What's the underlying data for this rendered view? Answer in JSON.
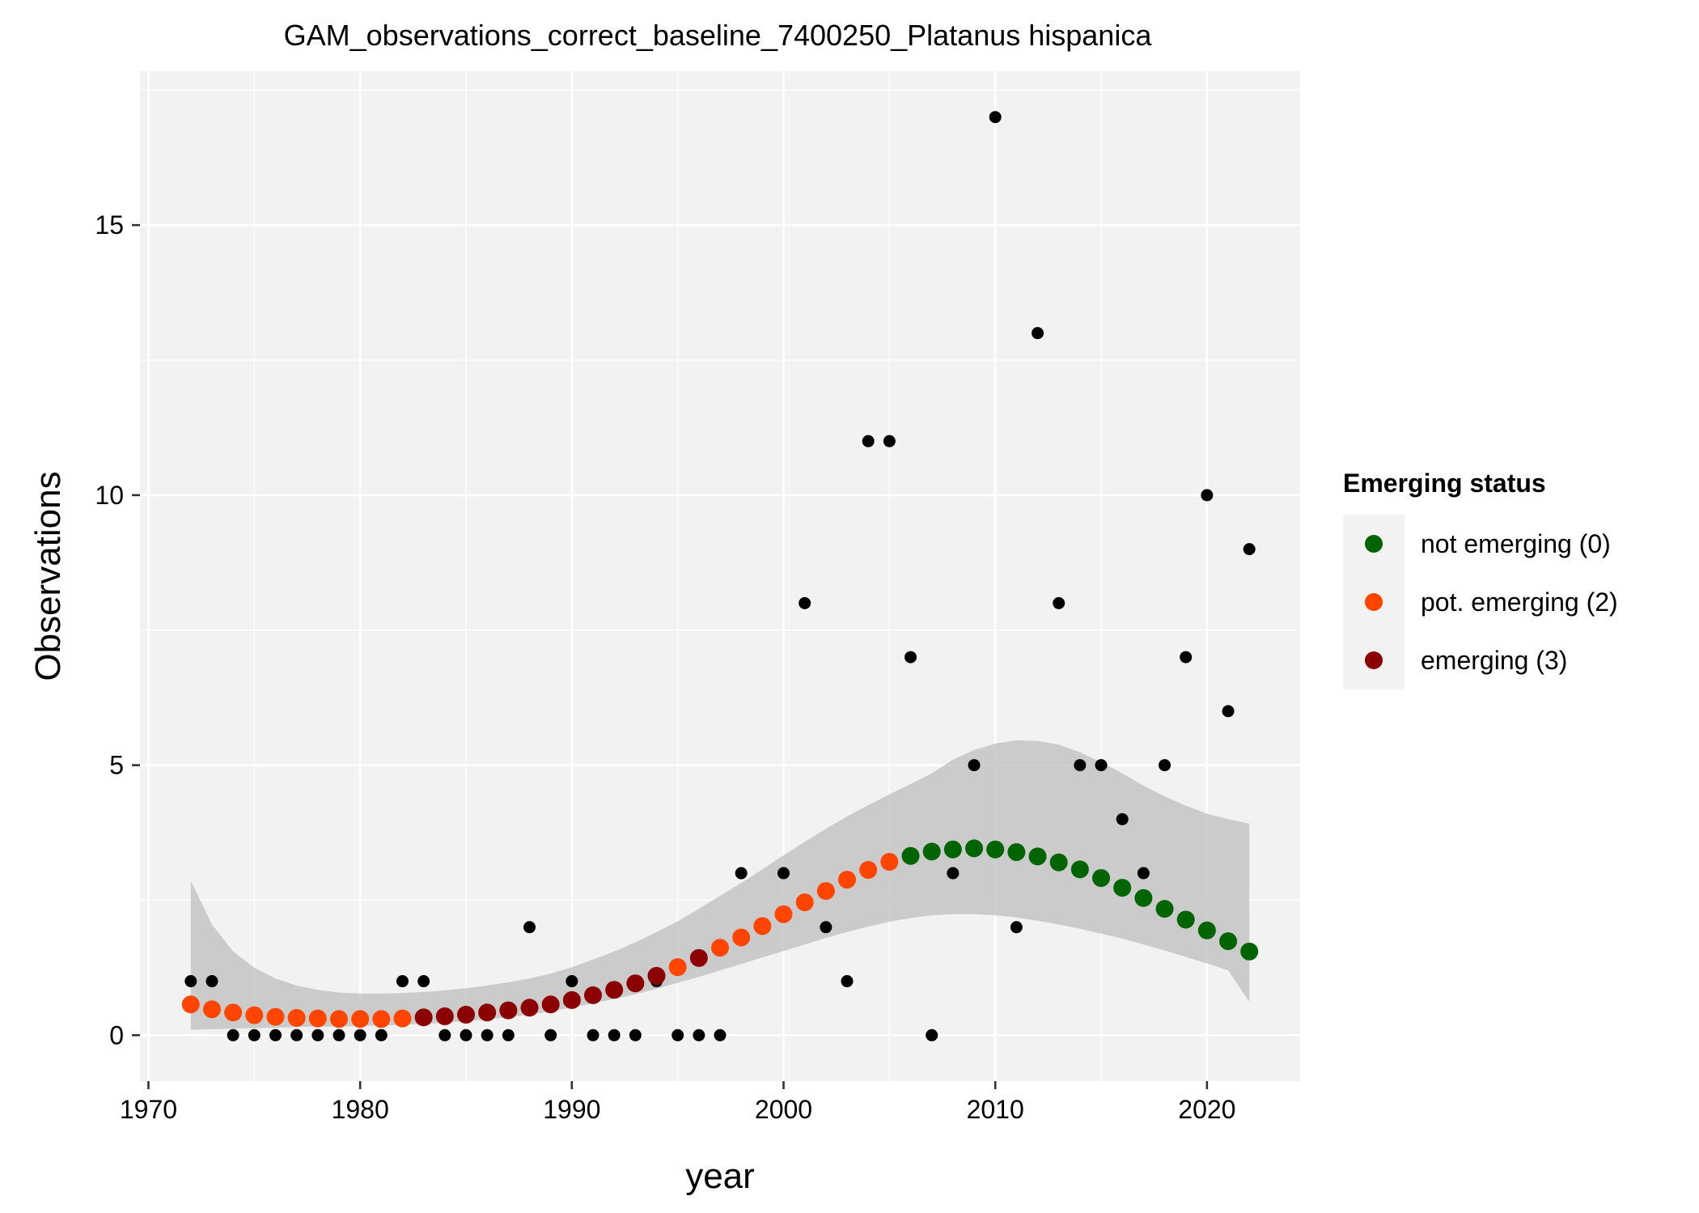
{
  "chart_data": {
    "type": "scatter",
    "title": "GAM_observations_correct_baseline_7400250_Platanus hispanica",
    "xlabel": "year",
    "ylabel": "Observations",
    "xlim": [
      1969.6,
      2024.4
    ],
    "ylim": [
      -0.85,
      17.85
    ],
    "x_ticks": [
      1970,
      1980,
      1990,
      2000,
      2010,
      2020
    ],
    "y_ticks": [
      0,
      5,
      10,
      15
    ],
    "grid": true,
    "legend": {
      "title": "Emerging status",
      "placement": "right",
      "entries": [
        {
          "label": "not emerging (0)",
          "color": "#006400"
        },
        {
          "label": "pot. emerging (2)",
          "color": "#FF4500"
        },
        {
          "label": "emerging (3)",
          "color": "#8B0000"
        }
      ]
    },
    "colors": {
      "panel": "#F2F2F2",
      "grid": "#FFFFFF",
      "ribbon": "#BEBEBE",
      "observed": "#000000",
      "not_emerging": "#006400",
      "pot_emerging": "#FF4500",
      "emerging": "#8B0000"
    },
    "observed": {
      "name": "",
      "x": [
        1972,
        1973,
        1974,
        1975,
        1976,
        1977,
        1978,
        1979,
        1980,
        1981,
        1982,
        1983,
        1984,
        1985,
        1986,
        1987,
        1988,
        1989,
        1990,
        1991,
        1992,
        1993,
        1994,
        1995,
        1996,
        1997,
        1998,
        2000,
        2001,
        2002,
        2003,
        2004,
        2005,
        2006,
        2007,
        2008,
        2009,
        2010,
        2011,
        2012,
        2013,
        2014,
        2015,
        2016,
        2017,
        2018,
        2019,
        2020,
        2021,
        2022
      ],
      "y": [
        1,
        1,
        0,
        0,
        0,
        0,
        0,
        0,
        0,
        0,
        1,
        1,
        0,
        0,
        0,
        0,
        2,
        0,
        1,
        0,
        0,
        0,
        1,
        0,
        0,
        0,
        3,
        3,
        8,
        2,
        1,
        11,
        11,
        7,
        0,
        3,
        5,
        17,
        2,
        13,
        8,
        5,
        5,
        4,
        3,
        5,
        7,
        10,
        6,
        9
      ]
    },
    "fit": {
      "x": [
        1972,
        1973,
        1974,
        1975,
        1976,
        1977,
        1978,
        1979,
        1980,
        1981,
        1982,
        1983,
        1984,
        1985,
        1986,
        1987,
        1988,
        1989,
        1990,
        1991,
        1992,
        1993,
        1994,
        1995,
        1996,
        1997,
        1998,
        1999,
        2000,
        2001,
        2002,
        2003,
        2004,
        2005,
        2006,
        2007,
        2008,
        2009,
        2010,
        2011,
        2012,
        2013,
        2014,
        2015,
        2016,
        2017,
        2018,
        2019,
        2020,
        2021,
        2022
      ],
      "y": [
        0.57,
        0.48,
        0.42,
        0.37,
        0.34,
        0.32,
        0.31,
        0.3,
        0.3,
        0.3,
        0.31,
        0.33,
        0.35,
        0.38,
        0.42,
        0.46,
        0.51,
        0.57,
        0.65,
        0.74,
        0.84,
        0.96,
        1.1,
        1.26,
        1.43,
        1.62,
        1.81,
        2.02,
        2.24,
        2.46,
        2.67,
        2.88,
        3.06,
        3.21,
        3.32,
        3.4,
        3.44,
        3.46,
        3.44,
        3.39,
        3.31,
        3.2,
        3.07,
        2.91,
        2.73,
        2.54,
        2.34,
        2.14,
        1.94,
        1.74,
        1.55
      ],
      "status": [
        2,
        2,
        2,
        2,
        2,
        2,
        2,
        2,
        2,
        2,
        2,
        3,
        3,
        3,
        3,
        3,
        3,
        3,
        3,
        3,
        3,
        3,
        3,
        2,
        3,
        2,
        2,
        2,
        2,
        2,
        2,
        2,
        2,
        2,
        0,
        0,
        0,
        0,
        0,
        0,
        0,
        0,
        0,
        0,
        0,
        0,
        0,
        0,
        0,
        0,
        0
      ],
      "lower": [
        0.1,
        0.11,
        0.12,
        0.13,
        0.14,
        0.15,
        0.16,
        0.16,
        0.17,
        0.18,
        0.19,
        0.21,
        0.23,
        0.26,
        0.29,
        0.33,
        0.38,
        0.44,
        0.51,
        0.59,
        0.67,
        0.76,
        0.86,
        0.97,
        1.08,
        1.2,
        1.32,
        1.44,
        1.56,
        1.68,
        1.8,
        1.91,
        2.01,
        2.1,
        2.17,
        2.22,
        2.24,
        2.24,
        2.22,
        2.18,
        2.12,
        2.05,
        1.97,
        1.88,
        1.79,
        1.68,
        1.57,
        1.45,
        1.33,
        1.2,
        0.62
      ],
      "upper": [
        2.86,
        2.05,
        1.55,
        1.25,
        1.05,
        0.92,
        0.84,
        0.79,
        0.77,
        0.77,
        0.78,
        0.8,
        0.83,
        0.87,
        0.92,
        0.98,
        1.05,
        1.14,
        1.26,
        1.4,
        1.55,
        1.72,
        1.91,
        2.11,
        2.34,
        2.58,
        2.82,
        3.07,
        3.33,
        3.58,
        3.82,
        4.05,
        4.26,
        4.46,
        4.65,
        4.85,
        5.1,
        5.28,
        5.4,
        5.46,
        5.45,
        5.38,
        5.24,
        5.06,
        4.85,
        4.62,
        4.42,
        4.25,
        4.1,
        4.0,
        3.92
      ]
    }
  }
}
